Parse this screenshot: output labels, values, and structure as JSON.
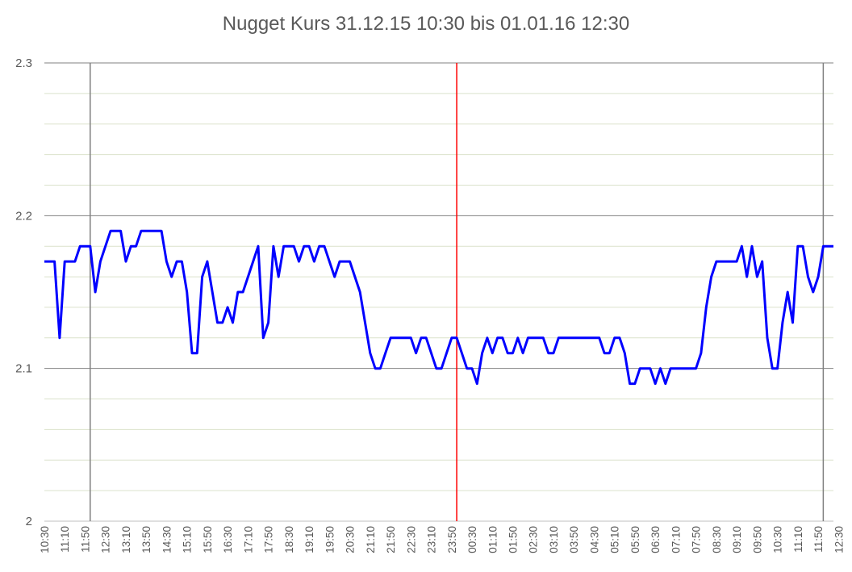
{
  "chart_data": {
    "type": "line",
    "title": "Nugget Kurs 31.12.15 10:30 bis 01.01.16 12:30",
    "xlabel": "",
    "ylabel": "",
    "ylim": [
      2,
      2.3
    ],
    "yticks": [
      "2",
      "2.1",
      "2.2",
      "2.3"
    ],
    "grid": "on",
    "legend": "none",
    "line_color": "#0000ff",
    "marker_line_color": "#ff0000",
    "gray_line_color": "#808080",
    "x_tick_labels": [
      "10:30",
      "11:10",
      "11:50",
      "12:30",
      "13:10",
      "13:50",
      "14:30",
      "15:10",
      "15:50",
      "16:30",
      "17:10",
      "17:50",
      "18:30",
      "19:10",
      "19:50",
      "20:30",
      "21:10",
      "21:50",
      "22:30",
      "23:10",
      "23:50",
      "00:30",
      "01:10",
      "01:50",
      "02:30",
      "03:10",
      "03:50",
      "04:30",
      "05:10",
      "05:50",
      "06:30",
      "07:10",
      "07:50",
      "08:30",
      "09:10",
      "09:50",
      "10:30",
      "11:10",
      "11:50",
      "12:30"
    ],
    "series": [
      {
        "x_start": "10:30",
        "x_step_minutes": 10,
        "values": [
          2.17,
          2.17,
          2.17,
          2.12,
          2.17,
          2.17,
          2.17,
          2.18,
          2.18,
          2.18,
          2.15,
          2.17,
          2.18,
          2.19,
          2.19,
          2.19,
          2.17,
          2.18,
          2.18,
          2.19,
          2.19,
          2.19,
          2.19,
          2.19,
          2.17,
          2.16,
          2.17,
          2.17,
          2.15,
          2.11,
          2.11,
          2.16,
          2.17,
          2.15,
          2.13,
          2.13,
          2.14,
          2.13,
          2.15,
          2.15,
          2.16,
          2.17,
          2.18,
          2.12,
          2.13,
          2.18,
          2.16,
          2.18,
          2.18,
          2.18,
          2.17,
          2.18,
          2.18,
          2.17,
          2.18,
          2.18,
          2.17,
          2.16,
          2.17,
          2.17,
          2.17,
          2.16,
          2.15,
          2.13,
          2.11,
          2.1,
          2.1,
          2.11,
          2.12,
          2.12,
          2.12,
          2.12,
          2.12,
          2.11,
          2.12,
          2.12,
          2.11,
          2.1,
          2.1,
          2.11,
          2.12,
          2.12,
          2.11,
          2.1,
          2.1,
          2.09,
          2.11,
          2.12,
          2.11,
          2.12,
          2.12,
          2.11,
          2.11,
          2.12,
          2.11,
          2.12,
          2.12,
          2.12,
          2.12,
          2.11,
          2.11,
          2.12,
          2.12,
          2.12,
          2.12,
          2.12,
          2.12,
          2.12,
          2.12,
          2.12,
          2.11,
          2.11,
          2.12,
          2.12,
          2.11,
          2.09,
          2.09,
          2.1,
          2.1,
          2.1,
          2.09,
          2.1,
          2.09,
          2.1,
          2.1,
          2.1,
          2.1,
          2.1,
          2.1,
          2.11,
          2.14,
          2.16,
          2.17,
          2.17,
          2.17,
          2.17,
          2.17,
          2.18,
          2.16,
          2.18,
          2.16,
          2.17,
          2.12,
          2.1,
          2.1,
          2.13,
          2.15,
          2.13,
          2.18,
          2.18,
          2.16,
          2.15,
          2.16,
          2.18,
          2.18,
          2.18
        ]
      }
    ],
    "vertical_markers": [
      {
        "x": "12:00",
        "color": "#808080"
      },
      {
        "x": "00:00",
        "color": "#ff0000"
      },
      {
        "x": "12:00 (01.01.16)",
        "color": "#808080"
      }
    ]
  }
}
